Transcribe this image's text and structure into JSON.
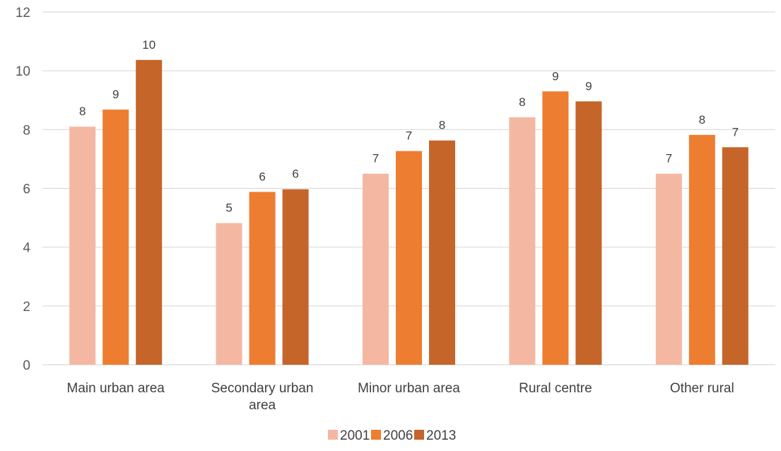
{
  "chart_data": {
    "type": "bar",
    "title": "",
    "xlabel": "",
    "ylabel": "",
    "ylim": [
      0,
      12
    ],
    "yticks": [
      0,
      2,
      4,
      6,
      8,
      10,
      12
    ],
    "grid": true,
    "legend_position": "bottom",
    "categories": [
      [
        "Main urban area"
      ],
      [
        "Secondary urban",
        "area"
      ],
      [
        "Minor urban area"
      ],
      [
        "Rural centre"
      ],
      [
        "Other rural"
      ]
    ],
    "series": [
      {
        "name": "2001",
        "color": "#F4B8A2",
        "values": [
          8.1,
          4.82,
          6.5,
          8.42,
          6.5
        ],
        "labels": [
          "8",
          "5",
          "7",
          "8",
          "7"
        ]
      },
      {
        "name": "2006",
        "color": "#ED7D31",
        "values": [
          8.68,
          5.88,
          7.27,
          9.3,
          7.82
        ],
        "labels": [
          "9",
          "6",
          "7",
          "9",
          "8"
        ]
      },
      {
        "name": "2013",
        "color": "#C5652A",
        "values": [
          10.37,
          5.97,
          7.63,
          8.96,
          7.4
        ],
        "labels": [
          "10",
          "6",
          "8",
          "9",
          "7"
        ]
      }
    ]
  }
}
